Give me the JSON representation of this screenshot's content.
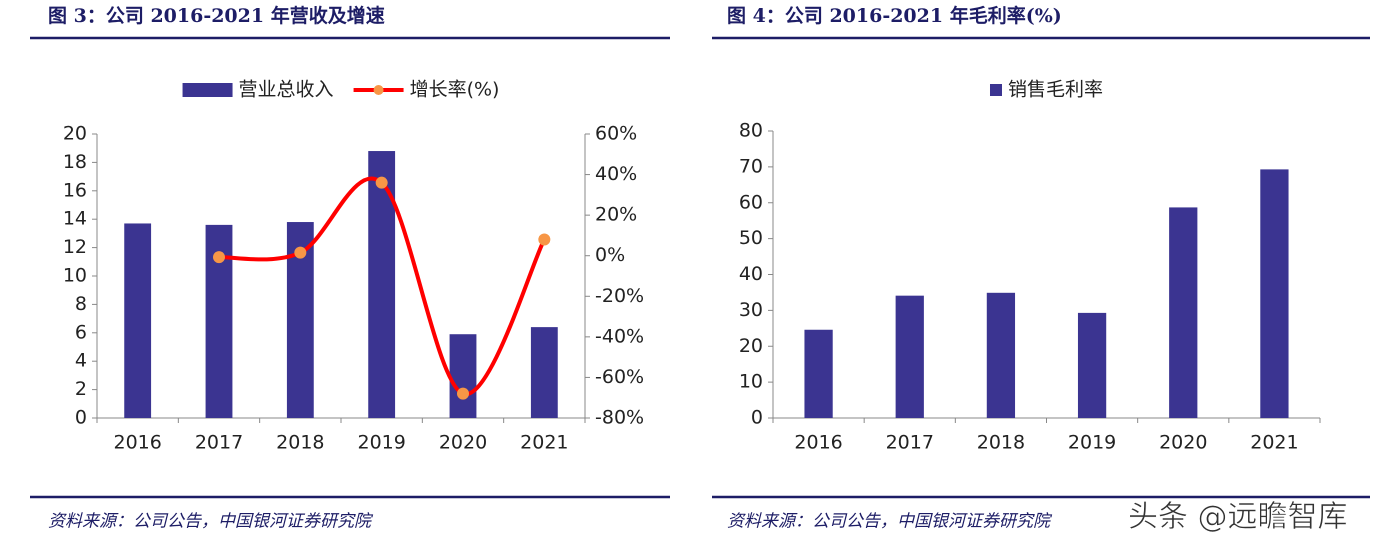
{
  "chart_data": [
    {
      "type": "bar",
      "title": "图 3：公司 2016-2021 年营收及增速",
      "categories": [
        "2016",
        "2017",
        "2018",
        "2019",
        "2020",
        "2021"
      ],
      "series": [
        {
          "name": "营业总收入",
          "color": "#3b3491",
          "values": [
            13.7,
            13.6,
            13.8,
            18.8,
            5.9,
            6.4
          ]
        },
        {
          "name": "增长率(%)",
          "type": "line",
          "axis": "y2",
          "color": "#ff0000",
          "marker_color": "#f79646",
          "values": [
            null,
            -0.7,
            1.5,
            36,
            -68,
            8
          ]
        }
      ],
      "ylim": [
        0,
        20
      ],
      "yticks": [
        0,
        2,
        4,
        6,
        8,
        10,
        12,
        14,
        16,
        18,
        20
      ],
      "y2lim": [
        -80,
        60
      ],
      "y2ticks": [
        {
          "value": -80,
          "label": "-80%"
        },
        {
          "value": -60,
          "label": "-60%"
        },
        {
          "value": -40,
          "label": "-40%"
        },
        {
          "value": -20,
          "label": "-20%"
        },
        {
          "value": 0,
          "label": "0%"
        },
        {
          "value": 20,
          "label": "20%"
        },
        {
          "value": 40,
          "label": "40%"
        },
        {
          "value": 60,
          "label": "60%"
        }
      ],
      "grid": false,
      "legend": "top",
      "source": "资料来源：公司公告，中国银河证券研究院"
    },
    {
      "type": "bar",
      "title": "图 4：公司 2016-2021 年毛利率(%)",
      "categories": [
        "2016",
        "2017",
        "2018",
        "2019",
        "2020",
        "2021"
      ],
      "series": [
        {
          "name": "销售毛利率",
          "color": "#3b3491",
          "values": [
            24.6,
            34.1,
            34.9,
            29.3,
            58.7,
            69.3
          ]
        }
      ],
      "ylim": [
        0,
        80
      ],
      "yticks": [
        0,
        10,
        20,
        30,
        40,
        50,
        60,
        70,
        80
      ],
      "grid": false,
      "legend": "top",
      "source": "资料来源：公司公告，中国银河证券研究院"
    }
  ],
  "watermark": "头条 @远瞻智库"
}
